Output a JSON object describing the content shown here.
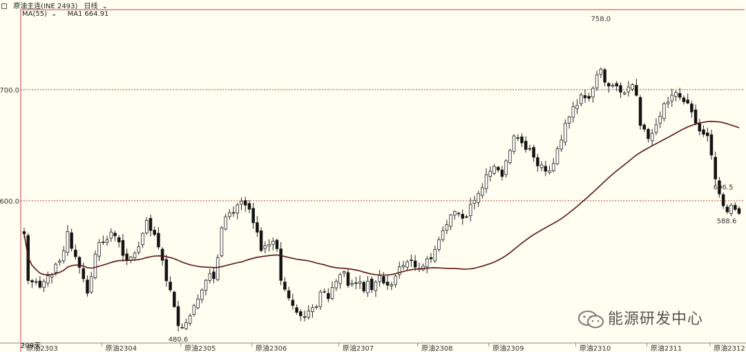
{
  "header": {
    "symbol": "原油主连(INE 2493)",
    "period": "日线"
  },
  "ma_legend": {
    "label": "MA(55)",
    "ma1_label": "MA1",
    "ma1_value": "664.91"
  },
  "watermark": "能源研发中心",
  "bottom_left_text": "209天",
  "colors": {
    "background": "#fffef0",
    "up": "#ffffff",
    "down": "#111111",
    "ma_line": "#5a1010",
    "grid_ref": "#c23a3a",
    "axis": "#c04040"
  },
  "chart_data": {
    "type": "candlestick",
    "ylim": [
      472,
      772
    ],
    "reference_lines": [
      700.0,
      600.0
    ],
    "y_tick_labels": [
      "700.0",
      "600.0"
    ],
    "x_tick_labels": [
      "原油2303",
      "原油2304",
      "原油2305",
      "原油2306",
      "原油2307",
      "原油2308",
      "原油2309",
      "原油2310",
      "原油2311",
      "原油2312"
    ],
    "annotations": [
      {
        "text": "606.5",
        "value": 606.5,
        "kind": "high"
      },
      {
        "text": "480.6",
        "value": 480.6,
        "kind": "low"
      },
      {
        "text": "758.0",
        "value": 758.0,
        "kind": "high"
      },
      {
        "text": "588.6",
        "value": 588.6,
        "kind": "last"
      }
    ],
    "closes": [
      570.3,
      528.2,
      526.9,
      526.7,
      522.2,
      527.4,
      532.5,
      533.8,
      542.9,
      545.8,
      554.9,
      572.3,
      557.1,
      549.7,
      540.1,
      529.8,
      516.8,
      531.8,
      552.0,
      562.4,
      562.8,
      565.0,
      571.9,
      568.4,
      562.9,
      550.8,
      546.3,
      549.4,
      552.8,
      558.6,
      570.7,
      582.3,
      573.2,
      569.6,
      558.4,
      546.4,
      528.0,
      519.7,
      504.7,
      487.6,
      485.8,
      490.4,
      496.5,
      505.7,
      511.6,
      519.7,
      528.5,
      534.3,
      529.9,
      548.9,
      575.7,
      585.6,
      589.3,
      589.2,
      596.3,
      599.5,
      596.1,
      592.4,
      580.2,
      571.7,
      555.2,
      559.7,
      560.7,
      563.7,
      556.9,
      528.3,
      520.3,
      512.5,
      505.7,
      499.6,
      496.5,
      495.5,
      500.9,
      503.8,
      504.9,
      517.8,
      518.4,
      511.9,
      522.0,
      527.4,
      533.6,
      536.3,
      523.7,
      525.7,
      526.0,
      527.0,
      518.8,
      527.7,
      519.9,
      526.8,
      532.8,
      526.0,
      524.0,
      524.4,
      532.3,
      540.5,
      541.9,
      545.1,
      546.1,
      540.3,
      538.9,
      541.3,
      547.7,
      547.7,
      556.3,
      565.0,
      573.1,
      578.6,
      587.3,
      590.4,
      588.2,
      584.2,
      585.3,
      596.8,
      600.4,
      606.6,
      611.8,
      623.4,
      626.6,
      630.9,
      627.8,
      621.9,
      636.0,
      645.2,
      658.4,
      656.3,
      652.1,
      646.1,
      646.9,
      639.2,
      631.4,
      632.2,
      626.6,
      627.1,
      633.6,
      646.8,
      654.7,
      669.7,
      675.5,
      684.7,
      685.7,
      695.2,
      692.6,
      692.2,
      701.2,
      713.2,
      718.5,
      706.7,
      703.2,
      703.8,
      703.2,
      697.7,
      697.0,
      702.4,
      704.7,
      694.9,
      667.8,
      664.4,
      655.9,
      660.8,
      668.4,
      676.0,
      687.3,
      688.8,
      695.0,
      697.5,
      693.1,
      689.1,
      687.9,
      679.9,
      669.9,
      662.7,
      659.9,
      658.5,
      641.1,
      619.6,
      606.1,
      595.5,
      590.0,
      596.0,
      592.3,
      588.6
    ]
  }
}
